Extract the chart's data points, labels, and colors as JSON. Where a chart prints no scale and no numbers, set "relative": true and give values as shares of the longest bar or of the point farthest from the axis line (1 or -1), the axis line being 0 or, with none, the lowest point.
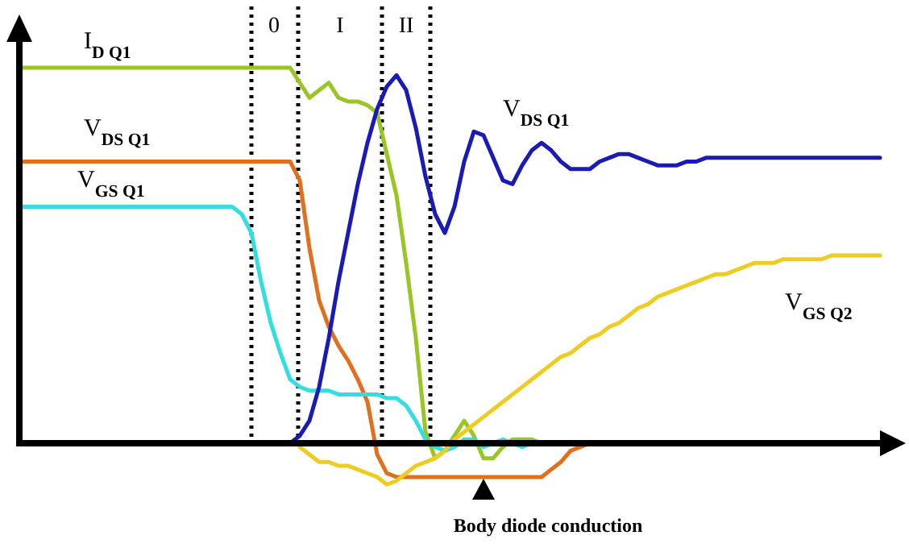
{
  "chart_data": {
    "type": "line",
    "relative": true,
    "legend": false,
    "categories": [
      null,
      null,
      null,
      null,
      null,
      null,
      null,
      null,
      null,
      null,
      null,
      null,
      null,
      null,
      null,
      null,
      null,
      null,
      null,
      null,
      null,
      null,
      null,
      null,
      null,
      null,
      null,
      null,
      null,
      null,
      null,
      null,
      null,
      null,
      null,
      null,
      null,
      null,
      null,
      null,
      null,
      null,
      null,
      null,
      null,
      null,
      null,
      null,
      null,
      null,
      null,
      null,
      null,
      null,
      null,
      null,
      null,
      null,
      null,
      null,
      null,
      null,
      null,
      null,
      null,
      null,
      null,
      null,
      null,
      null,
      null,
      null,
      null,
      null,
      null,
      null,
      null,
      null,
      null,
      null,
      null,
      null,
      null,
      null,
      null,
      null,
      null,
      null,
      null,
      null
    ],
    "series": [
      {
        "name": "I$_{D Q1}$",
        "color": "#99c526",
        "values": [
          1,
          1,
          1,
          1,
          1,
          1,
          1,
          1,
          1,
          1,
          1,
          1,
          1,
          1,
          1,
          1,
          1,
          1,
          1,
          1,
          1,
          1,
          1,
          1,
          1,
          1,
          1,
          1,
          1,
          0.96,
          0.92,
          0.94,
          0.96,
          0.92,
          0.91,
          0.91,
          0.9,
          0.88,
          0.77,
          0.66,
          0.48,
          0.28,
          0.03,
          -0.04,
          -0.02,
          0.02,
          0.06,
          0.02,
          -0.04,
          -0.04,
          -0.01,
          0.01,
          0.01,
          0.01,
          0,
          0,
          0,
          null,
          null,
          null,
          null,
          null,
          null,
          null,
          null,
          null,
          null,
          null,
          null,
          null,
          null,
          null,
          null,
          null,
          null,
          null,
          null,
          null,
          null,
          null,
          null,
          null,
          null,
          null,
          null,
          null,
          null,
          null,
          null,
          null
        ]
      },
      {
        "name": "V$_{DS Q1}$",
        "color": "#e0701e",
        "values": [
          0.75,
          0.75,
          0.75,
          0.75,
          0.75,
          0.75,
          0.75,
          0.75,
          0.75,
          0.75,
          0.75,
          0.75,
          0.75,
          0.75,
          0.75,
          0.75,
          0.75,
          0.75,
          0.75,
          0.75,
          0.75,
          0.75,
          0.75,
          0.75,
          0.75,
          0.75,
          0.75,
          0.75,
          0.75,
          0.7,
          0.52,
          0.38,
          0.31,
          0.26,
          0.22,
          0.17,
          0.11,
          -0.03,
          -0.08,
          -0.09,
          -0.09,
          -0.09,
          -0.09,
          -0.09,
          -0.09,
          -0.09,
          -0.09,
          -0.09,
          -0.09,
          -0.09,
          -0.09,
          -0.09,
          -0.09,
          -0.09,
          -0.09,
          -0.07,
          -0.05,
          -0.02,
          -0.01,
          0,
          0,
          null,
          null,
          null,
          null,
          null,
          null,
          null,
          null,
          null,
          null,
          null,
          null,
          null,
          null,
          null,
          null,
          null,
          null,
          null,
          null,
          null,
          null,
          null,
          null,
          null,
          null,
          null,
          null,
          null
        ]
      },
      {
        "name": "V$_{GS Q1}$",
        "color": "#33dde0",
        "values": [
          0.63,
          0.63,
          0.63,
          0.63,
          0.63,
          0.63,
          0.63,
          0.63,
          0.63,
          0.63,
          0.63,
          0.63,
          0.63,
          0.63,
          0.63,
          0.63,
          0.63,
          0.63,
          0.63,
          0.63,
          0.63,
          0.63,
          0.63,
          0.61,
          0.56,
          0.43,
          0.32,
          0.24,
          0.17,
          0.15,
          0.14,
          0.14,
          0.14,
          0.13,
          0.13,
          0.13,
          0.13,
          0.13,
          0.12,
          0.12,
          0.1,
          0.06,
          0.01,
          -0.01,
          -0.02,
          -0.01,
          0.01,
          0.01,
          -0.01,
          0,
          0.01,
          0,
          -0.01,
          0,
          0,
          null,
          null,
          null,
          null,
          null,
          null,
          null,
          null,
          null,
          null,
          null,
          null,
          null,
          null,
          null,
          null,
          null,
          null,
          null,
          null,
          null,
          null,
          null,
          null,
          null,
          null,
          null,
          null,
          null,
          null,
          null,
          null,
          null,
          null,
          null
        ]
      },
      {
        "name": "V$_{DS Q1}$",
        "color": "#1a1ab4",
        "values": [
          null,
          null,
          null,
          null,
          null,
          null,
          null,
          null,
          null,
          null,
          null,
          null,
          null,
          null,
          null,
          null,
          null,
          null,
          null,
          null,
          null,
          null,
          null,
          null,
          null,
          null,
          null,
          0,
          0,
          0.02,
          0.06,
          0.15,
          0.28,
          0.43,
          0.56,
          0.69,
          0.8,
          0.89,
          0.95,
          0.98,
          0.94,
          0.84,
          0.71,
          0.61,
          0.56,
          0.63,
          0.75,
          0.83,
          0.82,
          0.76,
          0.7,
          0.69,
          0.74,
          0.78,
          0.8,
          0.78,
          0.75,
          0.73,
          0.73,
          0.73,
          0.75,
          0.76,
          0.77,
          0.77,
          0.76,
          0.75,
          0.74,
          0.74,
          0.74,
          0.75,
          0.75,
          0.76,
          0.76,
          0.76,
          0.76,
          0.76,
          0.76,
          0.76,
          0.76,
          0.76,
          0.76,
          0.76,
          0.76,
          0.76,
          0.76,
          0.76,
          0.76,
          0.76,
          0.76,
          0.76
        ]
      },
      {
        "name": "V$_{GS Q2}$",
        "color": "#eecc22",
        "values": [
          null,
          null,
          null,
          null,
          null,
          null,
          null,
          null,
          null,
          null,
          null,
          null,
          null,
          null,
          null,
          null,
          null,
          null,
          null,
          null,
          null,
          null,
          null,
          null,
          null,
          null,
          null,
          null,
          null,
          -0.01,
          -0.03,
          -0.05,
          -0.05,
          -0.06,
          -0.06,
          -0.07,
          -0.08,
          -0.09,
          -0.11,
          -0.1,
          -0.08,
          -0.06,
          -0.05,
          -0.04,
          -0.02,
          0.01,
          0.03,
          0.05,
          0.07,
          0.09,
          0.11,
          0.13,
          0.15,
          0.17,
          0.19,
          0.21,
          0.23,
          0.24,
          0.26,
          0.28,
          0.29,
          0.31,
          0.32,
          0.34,
          0.36,
          0.37,
          0.39,
          0.4,
          0.41,
          0.42,
          0.43,
          0.44,
          0.45,
          0.45,
          0.46,
          0.47,
          0.48,
          0.48,
          0.48,
          0.49,
          0.49,
          0.49,
          0.49,
          0.49,
          0.5,
          0.5,
          0.5,
          0.5,
          0.5,
          0.5
        ]
      }
    ],
    "annotations": [
      "0",
      "I",
      "II",
      "Body diode conduction"
    ]
  }
}
